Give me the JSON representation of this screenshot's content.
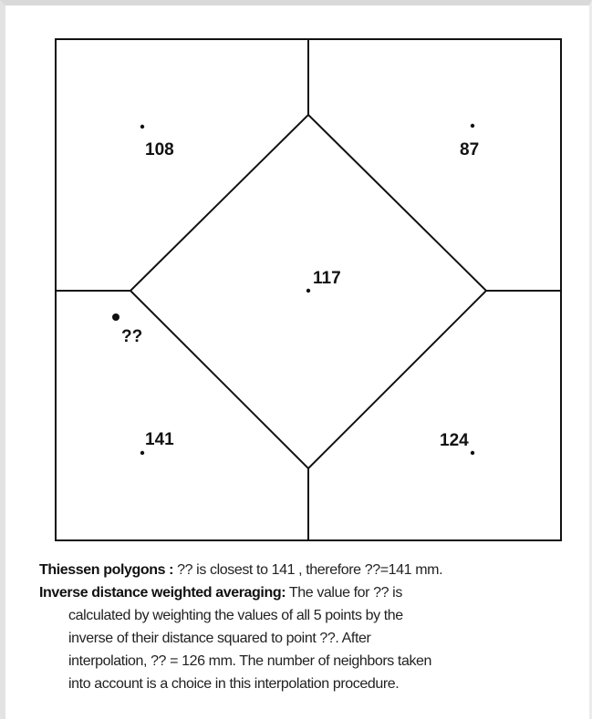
{
  "points": [
    {
      "label": "108"
    },
    {
      "label": "87"
    },
    {
      "label": "117"
    },
    {
      "label": "??"
    },
    {
      "label": "141"
    },
    {
      "label": "124"
    }
  ],
  "caption": {
    "thiessen": {
      "term": "Thiessen polygons :",
      "text": " ?? is closest to 141 , therefore ??=141 mm."
    },
    "idw": {
      "term": "Inverse distance weighted averaging:",
      "lines": [
        " The value for ?? is",
        "calculated by weighting the values of all 5 points by the",
        "inverse of their distance squared to point ??. After",
        "interpolation, ?? = 126 mm. The number of neighbors taken",
        "into account is a choice in this interpolation procedure."
      ]
    }
  }
}
